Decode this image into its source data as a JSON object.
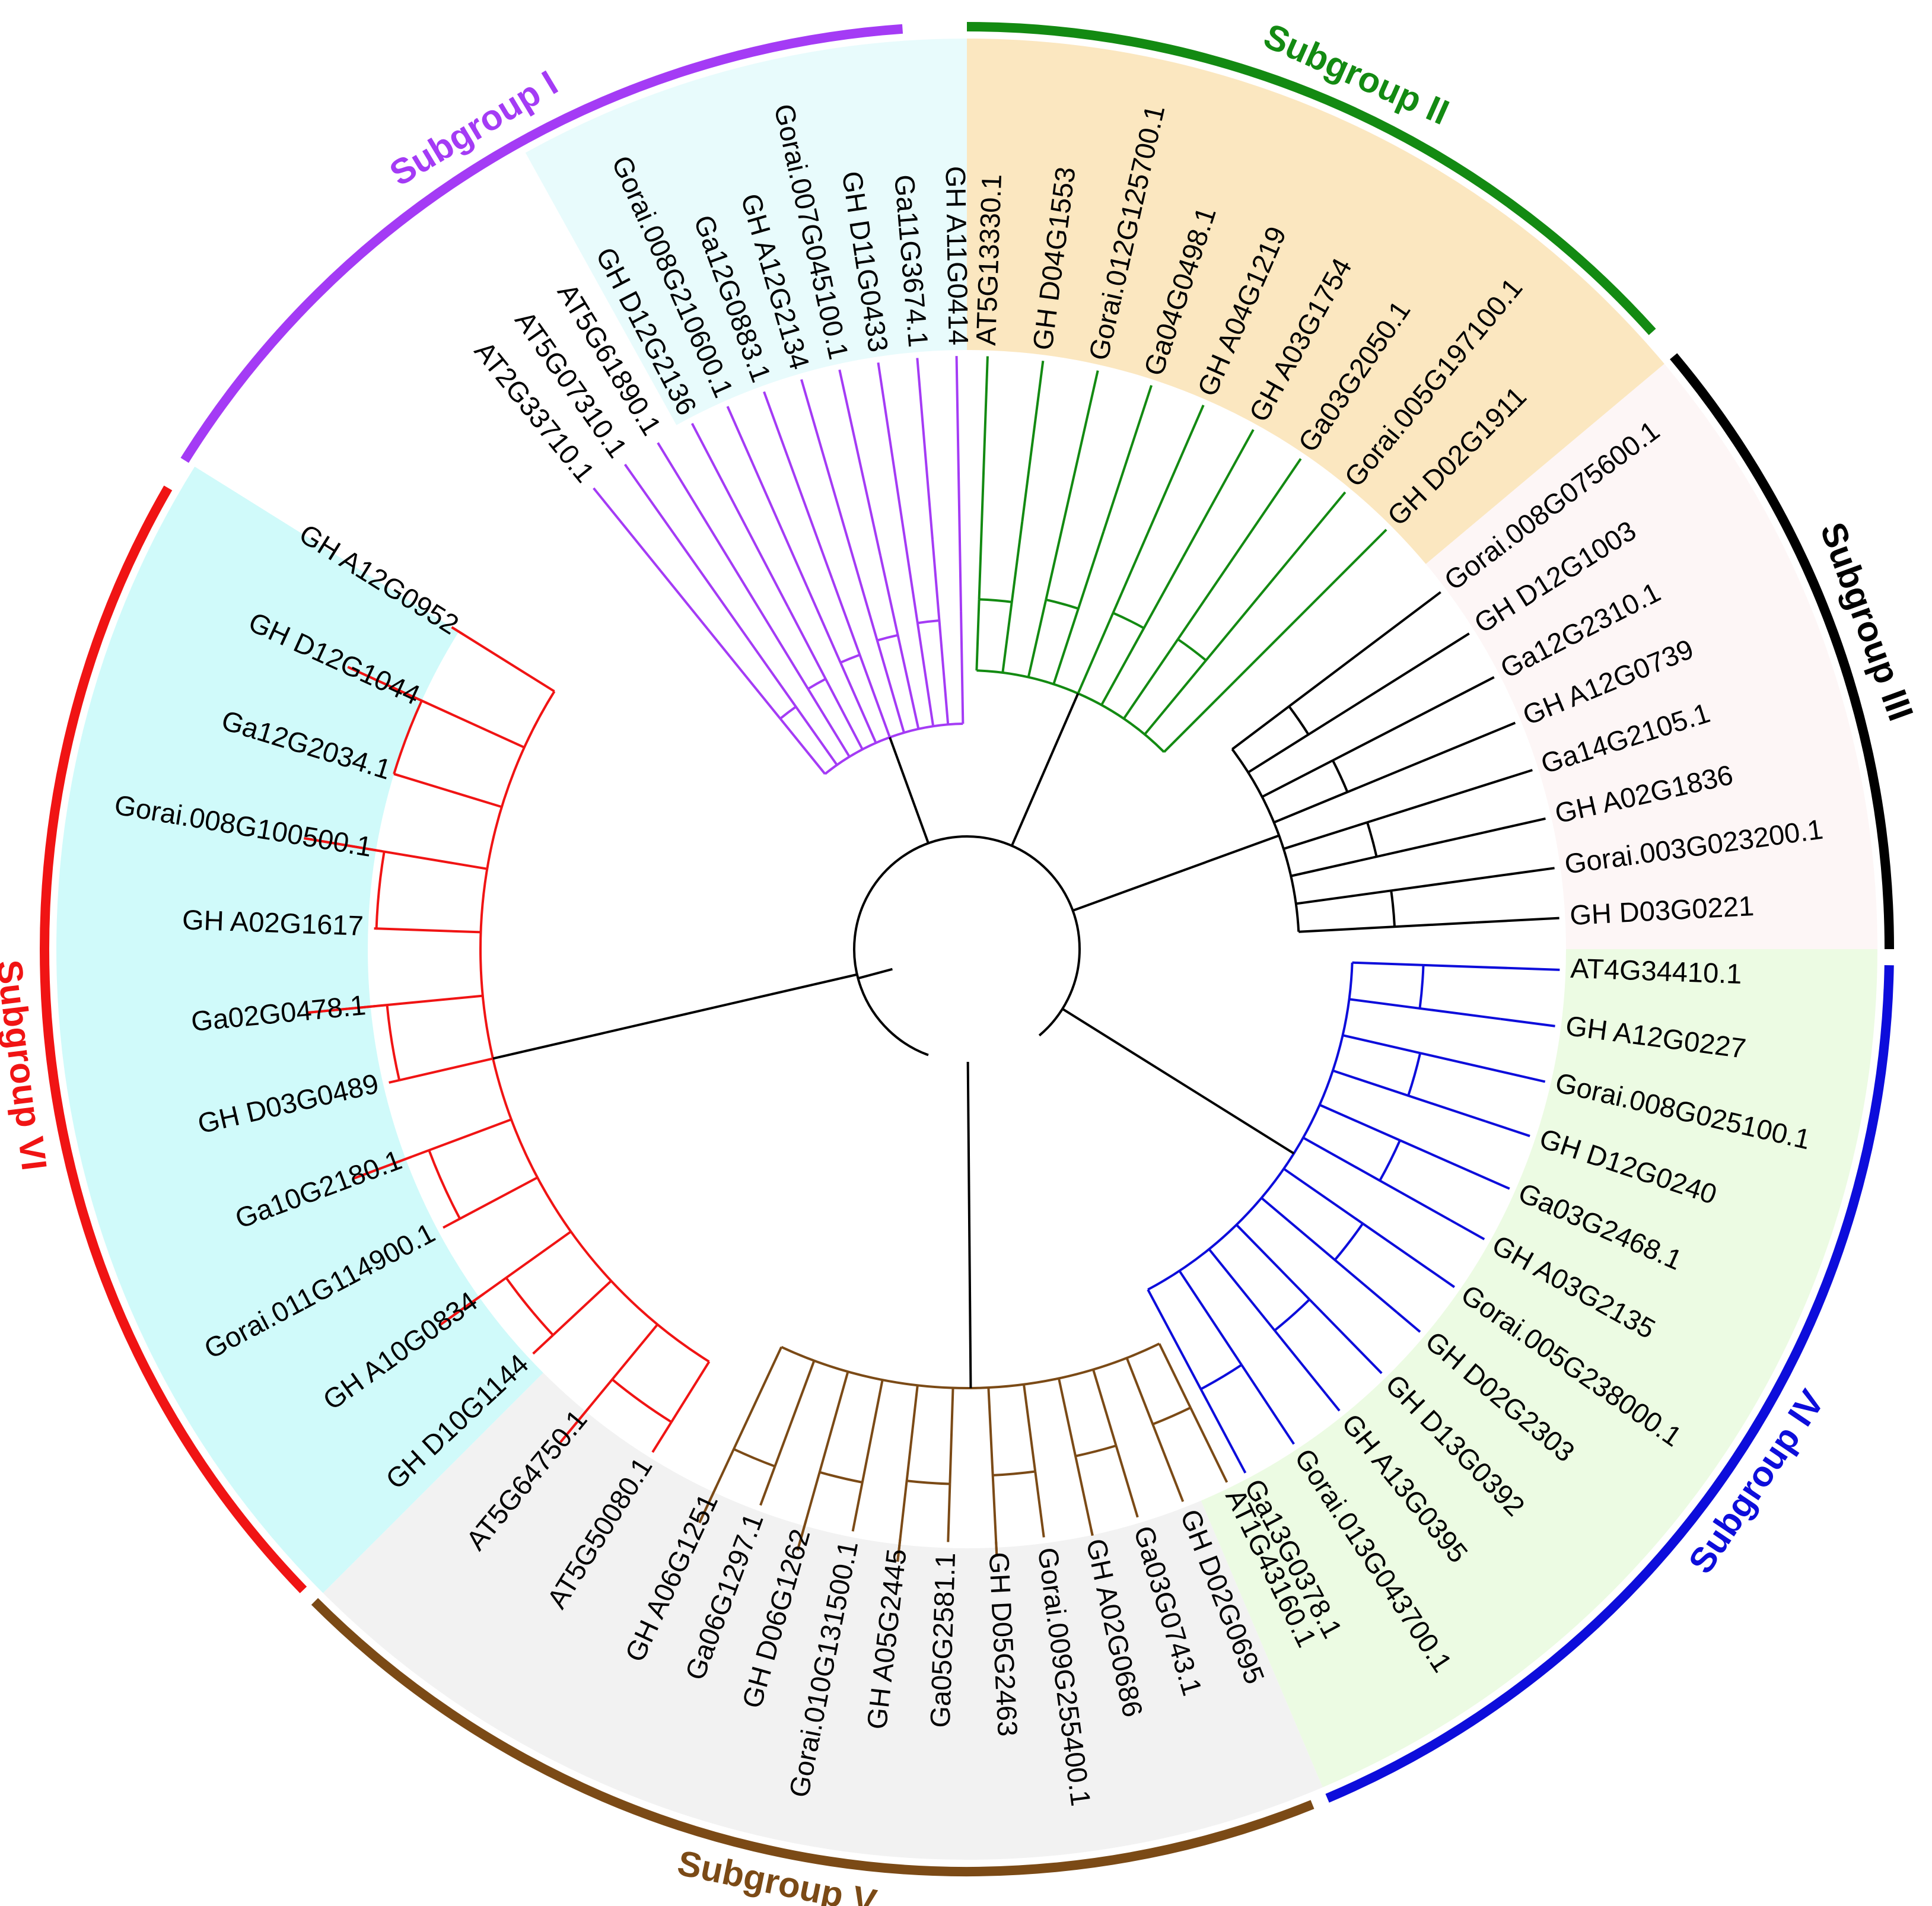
{
  "groups": [
    {
      "label": "Subgroup I",
      "color": "#a43bf5",
      "bg": "#e8fbfc",
      "start": 333,
      "end": 360,
      "leaves": [
        "AT2G33710.1",
        "AT5G07310.1",
        "AT5G61890.1",
        "GH D12G2136",
        "Gorai.008G210600.1",
        "Ga12G0883.1",
        "GH A12G2134",
        "Gorai.007G045100.1",
        "GH D11G0433",
        "Ga11G3674.1",
        "GH A11G0414"
      ]
    },
    {
      "label": "Subgroup II",
      "color": "#138a12",
      "bg": "#fbe7c0",
      "start": 0,
      "end": 50,
      "leaves": [
        "AT5G13330.1",
        "GH D04G1553",
        "Gorai.012G125700.1",
        "Ga04G0498.1",
        "GH A04G1219",
        "GH A03G1754",
        "Ga03G2050.1",
        "Gorai.005G197100.1",
        "GH D02G1911"
      ]
    },
    {
      "label": "Subgroup III",
      "color": "#000000",
      "bg": "#fdf6f6",
      "start": 50,
      "end": 90,
      "leaves": [
        "Gorai.008G075600.1",
        "GH D12G1003",
        "Ga12G2310.1",
        "GH A12G0739",
        "Ga14G2105.1",
        "GH A02G1836",
        "Gorai.003G023200.1",
        "GH D03G0221"
      ]
    },
    {
      "label": "Subgroup IV",
      "color": "#0d0ddb",
      "bg": "#ecfbe3",
      "start": 90,
      "end": 157,
      "leaves": [
        "AT4G34410.1",
        "GH A12G0227",
        "Gorai.008G025100.1",
        "GH D12G0240",
        "Ga03G2468.1",
        "GH A03G2135",
        "Gorai.005G238000.1",
        "GH D02G2303",
        "GH D13G0392",
        "GH A13G0395",
        "Gorai.013G043700.1",
        "Ga13G0378.1"
      ]
    },
    {
      "label": "Subgroup V",
      "color": "#7b4a16",
      "bg": "#f2f2f2",
      "start": 157,
      "end": 225,
      "leaves": [
        "AT1G43160.1",
        "GH D02G0695",
        "Ga03G0743.1",
        "GH A02G0686",
        "Gorai.009G255400.1",
        "GH D05G2463",
        "Ga05G2581.1",
        "GH A05G2445",
        "Gorai.010G131500.1",
        "GH D06G1262",
        "Ga06G1297.1",
        "GH A06G1251"
      ]
    },
    {
      "label": "Subgroup VI",
      "color": "#f01414",
      "bg": "#d0fafa",
      "start": 225,
      "end": 322,
      "leaves": [
        "AT5G50080.1",
        "AT5G64750.1",
        "GH D10G1144",
        "GH A10G0834",
        "Gorai.011G114900.1",
        "Ga10G2180.1",
        "GH D03G0489",
        "Ga02G0478.1",
        "GH A02G1617",
        "Gorai.008G100500.1",
        "Ga12G2034.1",
        "GH D12G1044",
        "GH A12G0952"
      ]
    }
  ]
}
